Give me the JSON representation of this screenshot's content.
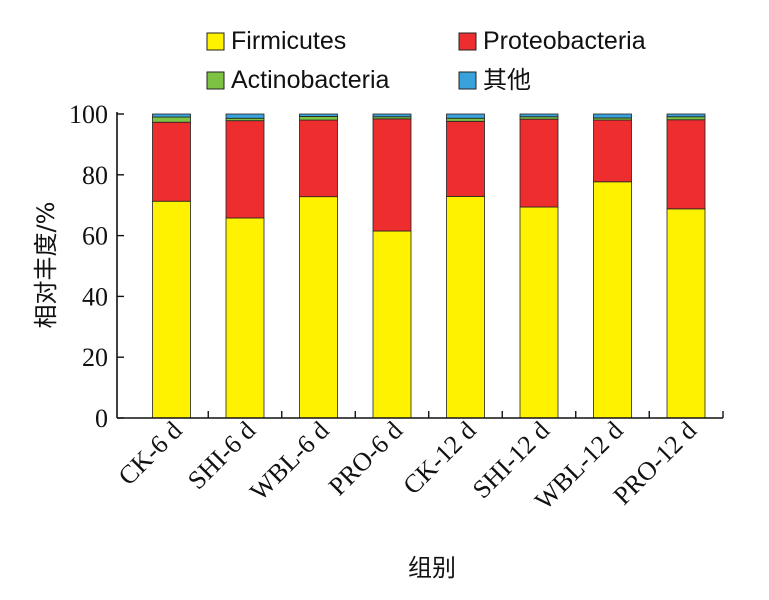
{
  "chart_data": {
    "type": "bar",
    "stacked": true,
    "categories": [
      "CK-6 d",
      "SHI-6 d",
      "WBL-6 d",
      "PRO-6 d",
      "CK-12 d",
      "SHI-12 d",
      "WBL-12 d",
      "PRO-12 d"
    ],
    "series": [
      {
        "name": "Firmicutes",
        "color": "#FFF200",
        "values": [
          71.3,
          65.8,
          72.8,
          61.5,
          72.9,
          69.4,
          77.7,
          68.8
        ]
      },
      {
        "name": "Proteobacteria",
        "color": "#EE2D2F",
        "values": [
          26.0,
          32.0,
          25.2,
          36.9,
          24.7,
          28.9,
          20.3,
          29.3
        ]
      },
      {
        "name": "Actinobacteria",
        "color": "#7DC242",
        "values": [
          1.7,
          0.8,
          1.2,
          0.7,
          1.0,
          0.8,
          0.7,
          1.0
        ]
      },
      {
        "name": "其他",
        "color": "#3AA2DB",
        "values": [
          1.0,
          1.4,
          0.8,
          0.9,
          1.4,
          0.9,
          1.3,
          0.9
        ]
      }
    ],
    "title": "",
    "xlabel": "组别",
    "ylabel": "相对丰度/%",
    "ylim": [
      0,
      100
    ],
    "yticks": [
      "0",
      "20",
      "40",
      "60",
      "80",
      "100"
    ],
    "grid": false,
    "legend_position": "top"
  }
}
